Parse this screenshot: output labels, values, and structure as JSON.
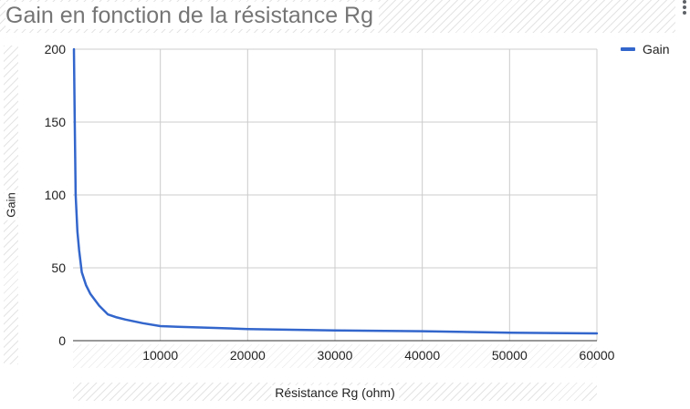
{
  "chart_data": {
    "type": "line",
    "title": "Gain en fonction de la résistance Rg",
    "xlabel": "Résistance Rg (ohm)",
    "ylabel": "Gain",
    "xlim": [
      0,
      60000
    ],
    "ylim": [
      0,
      200
    ],
    "x_ticks": [
      "10000",
      "20000",
      "30000",
      "40000",
      "50000",
      "60000"
    ],
    "y_ticks": [
      "0",
      "50",
      "100",
      "150",
      "200"
    ],
    "grid": true,
    "legend_position": "top-right",
    "series": [
      {
        "name": "Gain",
        "color": "#3366cc",
        "x": [
          100,
          200,
          300,
          500,
          700,
          1000,
          1500,
          2000,
          3000,
          4000,
          5000,
          6000,
          8000,
          10000,
          12000,
          15000,
          20000,
          30000,
          40000,
          50000,
          60000
        ],
        "y": [
          200,
          150,
          100,
          75,
          62,
          47,
          38,
          32,
          24,
          18,
          16,
          14.5,
          12,
          10,
          9.5,
          9,
          8,
          7,
          6.5,
          5.5,
          5
        ]
      }
    ]
  },
  "menu": {
    "icon": "more-vert-icon"
  }
}
